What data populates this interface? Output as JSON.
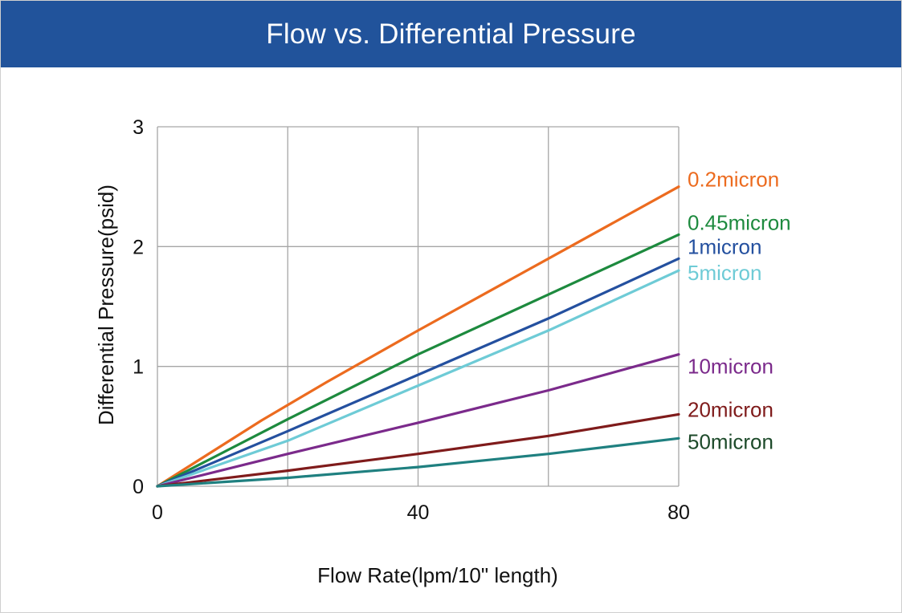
{
  "chart_data": {
    "type": "line",
    "title": "Flow vs. Differential Pressure",
    "xlabel": "Flow Rate(lpm/10\" length)",
    "ylabel": "Differential Pressure(psid)",
    "xlim": [
      0,
      80
    ],
    "ylim": [
      0,
      3
    ],
    "xticks": [
      0,
      40,
      80
    ],
    "yticks": [
      0,
      1,
      2,
      3
    ],
    "x_grid": [
      0,
      20,
      40,
      60,
      80
    ],
    "grid": true,
    "series": [
      {
        "name": "0.2micron",
        "color": "#ec6b1f",
        "x": [
          0,
          16,
          26,
          40,
          60,
          80
        ],
        "y": [
          0,
          0.55,
          0.87,
          1.3,
          1.9,
          2.5
        ]
      },
      {
        "name": "0.45micron",
        "color": "#1d8a3e",
        "x": [
          0,
          20,
          40,
          60,
          80
        ],
        "y": [
          0,
          0.56,
          1.1,
          1.6,
          2.1
        ]
      },
      {
        "name": "1micron",
        "color": "#24509f",
        "x": [
          0,
          20,
          40,
          60,
          80
        ],
        "y": [
          0,
          0.46,
          0.93,
          1.4,
          1.9
        ]
      },
      {
        "name": "5micron",
        "color": "#6ecbd6",
        "x": [
          0,
          20,
          40,
          60,
          80
        ],
        "y": [
          0,
          0.38,
          0.84,
          1.3,
          1.8
        ]
      },
      {
        "name": "10micron",
        "color": "#7b2a8b",
        "x": [
          0,
          20,
          40,
          60,
          80
        ],
        "y": [
          0,
          0.27,
          0.53,
          0.8,
          1.1
        ]
      },
      {
        "name": "20micron",
        "color": "#7f1b1b",
        "x": [
          0,
          20,
          40,
          60,
          80
        ],
        "y": [
          0,
          0.13,
          0.27,
          0.42,
          0.6
        ]
      },
      {
        "name": "50micron",
        "color": "#1f8080",
        "x": [
          0,
          20,
          40,
          60,
          80
        ],
        "y": [
          0,
          0.07,
          0.16,
          0.27,
          0.4
        ]
      }
    ],
    "label_colors": [
      "#ec6b1f",
      "#1d8a3e",
      "#24509f",
      "#6ecbd6",
      "#7b2a8b",
      "#7f1b1b",
      "#1d4a2a"
    ],
    "label_y": [
      2.56,
      2.2,
      2.0,
      1.78,
      1.0,
      0.64,
      0.37
    ]
  }
}
